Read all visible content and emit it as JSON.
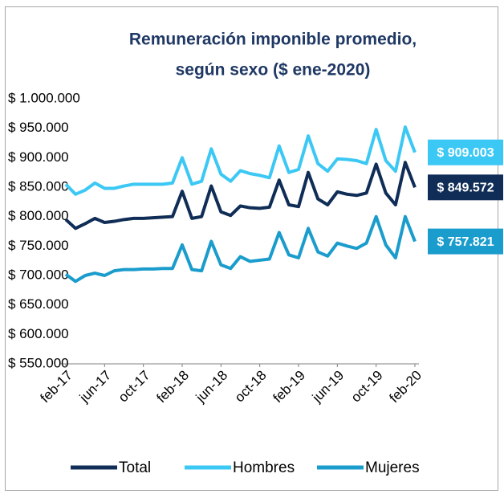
{
  "chart_data": {
    "type": "line",
    "title": [
      "Remuneración imponible promedio,",
      "según sexo ($ ene-2020)"
    ],
    "categories": [
      "feb-17",
      null,
      null,
      null,
      "jun-17",
      null,
      null,
      null,
      "oct-17",
      null,
      null,
      null,
      "feb-18",
      null,
      null,
      null,
      "jun-18",
      null,
      null,
      null,
      "oct-18",
      null,
      null,
      null,
      "feb-19",
      null,
      null,
      null,
      "jun-19",
      null,
      null,
      null,
      "oct-19",
      null,
      null,
      null,
      "feb-20"
    ],
    "series": [
      {
        "name": "Total",
        "color": "#0f2d56",
        "values": [
          795000,
          780000,
          788000,
          797000,
          790000,
          792000,
          795000,
          797000,
          797000,
          798000,
          799000,
          800000,
          843000,
          797000,
          800000,
          852000,
          808000,
          802000,
          818000,
          815000,
          814000,
          816000,
          862000,
          820000,
          817000,
          875000,
          830000,
          820000,
          842000,
          838000,
          836000,
          840000,
          889000,
          840000,
          820000,
          892000,
          849572
        ],
        "value_labels": [
          null,
          null,
          null,
          null,
          null,
          null,
          null,
          null,
          null,
          null,
          null,
          null,
          null,
          null,
          null,
          null,
          null,
          null,
          null,
          null,
          null,
          null,
          null,
          null,
          null,
          null,
          null,
          null,
          null,
          null,
          null,
          null,
          null,
          null,
          null,
          null,
          "$ 849.572"
        ]
      },
      {
        "name": "Hombres",
        "color": "#3cc8f4",
        "values": [
          855000,
          838000,
          845000,
          857000,
          848000,
          848000,
          852000,
          855000,
          855000,
          855000,
          855000,
          857000,
          900000,
          855000,
          860000,
          915000,
          872000,
          860000,
          878000,
          873000,
          870000,
          866000,
          920000,
          875000,
          880000,
          937000,
          890000,
          877000,
          898000,
          897000,
          895000,
          890000,
          948000,
          895000,
          877000,
          952000,
          909003
        ],
        "value_labels": [
          null,
          null,
          null,
          null,
          null,
          null,
          null,
          null,
          null,
          null,
          null,
          null,
          null,
          null,
          null,
          null,
          null,
          null,
          null,
          null,
          null,
          null,
          null,
          null,
          null,
          null,
          null,
          null,
          null,
          null,
          null,
          null,
          null,
          null,
          null,
          null,
          "$ 909.003"
        ]
      },
      {
        "name": "Mujeres",
        "color": "#1a9ccc",
        "values": [
          702000,
          690000,
          700000,
          704000,
          700000,
          708000,
          710000,
          710000,
          711000,
          711000,
          712000,
          712000,
          752000,
          710000,
          708000,
          758000,
          718000,
          712000,
          732000,
          724000,
          726000,
          728000,
          773000,
          735000,
          730000,
          780000,
          740000,
          733000,
          755000,
          750000,
          746000,
          755000,
          800000,
          752000,
          730000,
          800000,
          757821
        ],
        "value_labels": [
          null,
          null,
          null,
          null,
          null,
          null,
          null,
          null,
          null,
          null,
          null,
          null,
          null,
          null,
          null,
          null,
          null,
          null,
          null,
          null,
          null,
          null,
          null,
          null,
          null,
          null,
          null,
          null,
          null,
          null,
          null,
          null,
          null,
          null,
          null,
          null,
          "$ 757.821"
        ]
      }
    ],
    "ylim": [
      550000,
      1000000
    ],
    "yticks": [
      {
        "value": 550000,
        "label": "$ 550.000"
      },
      {
        "value": 600000,
        "label": "$ 600.000"
      },
      {
        "value": 650000,
        "label": "$ 650.000"
      },
      {
        "value": 700000,
        "label": "$ 700.000"
      },
      {
        "value": 750000,
        "label": "$ 750.000"
      },
      {
        "value": 800000,
        "label": "$ 800.000"
      },
      {
        "value": 850000,
        "label": "$ 850.000"
      },
      {
        "value": 900000,
        "label": "$ 900.000"
      },
      {
        "value": 950000,
        "label": "$ 950.000"
      },
      {
        "value": 1000000,
        "label": "$ 1.000.000"
      }
    ],
    "grid": false,
    "legend": "bottom"
  }
}
